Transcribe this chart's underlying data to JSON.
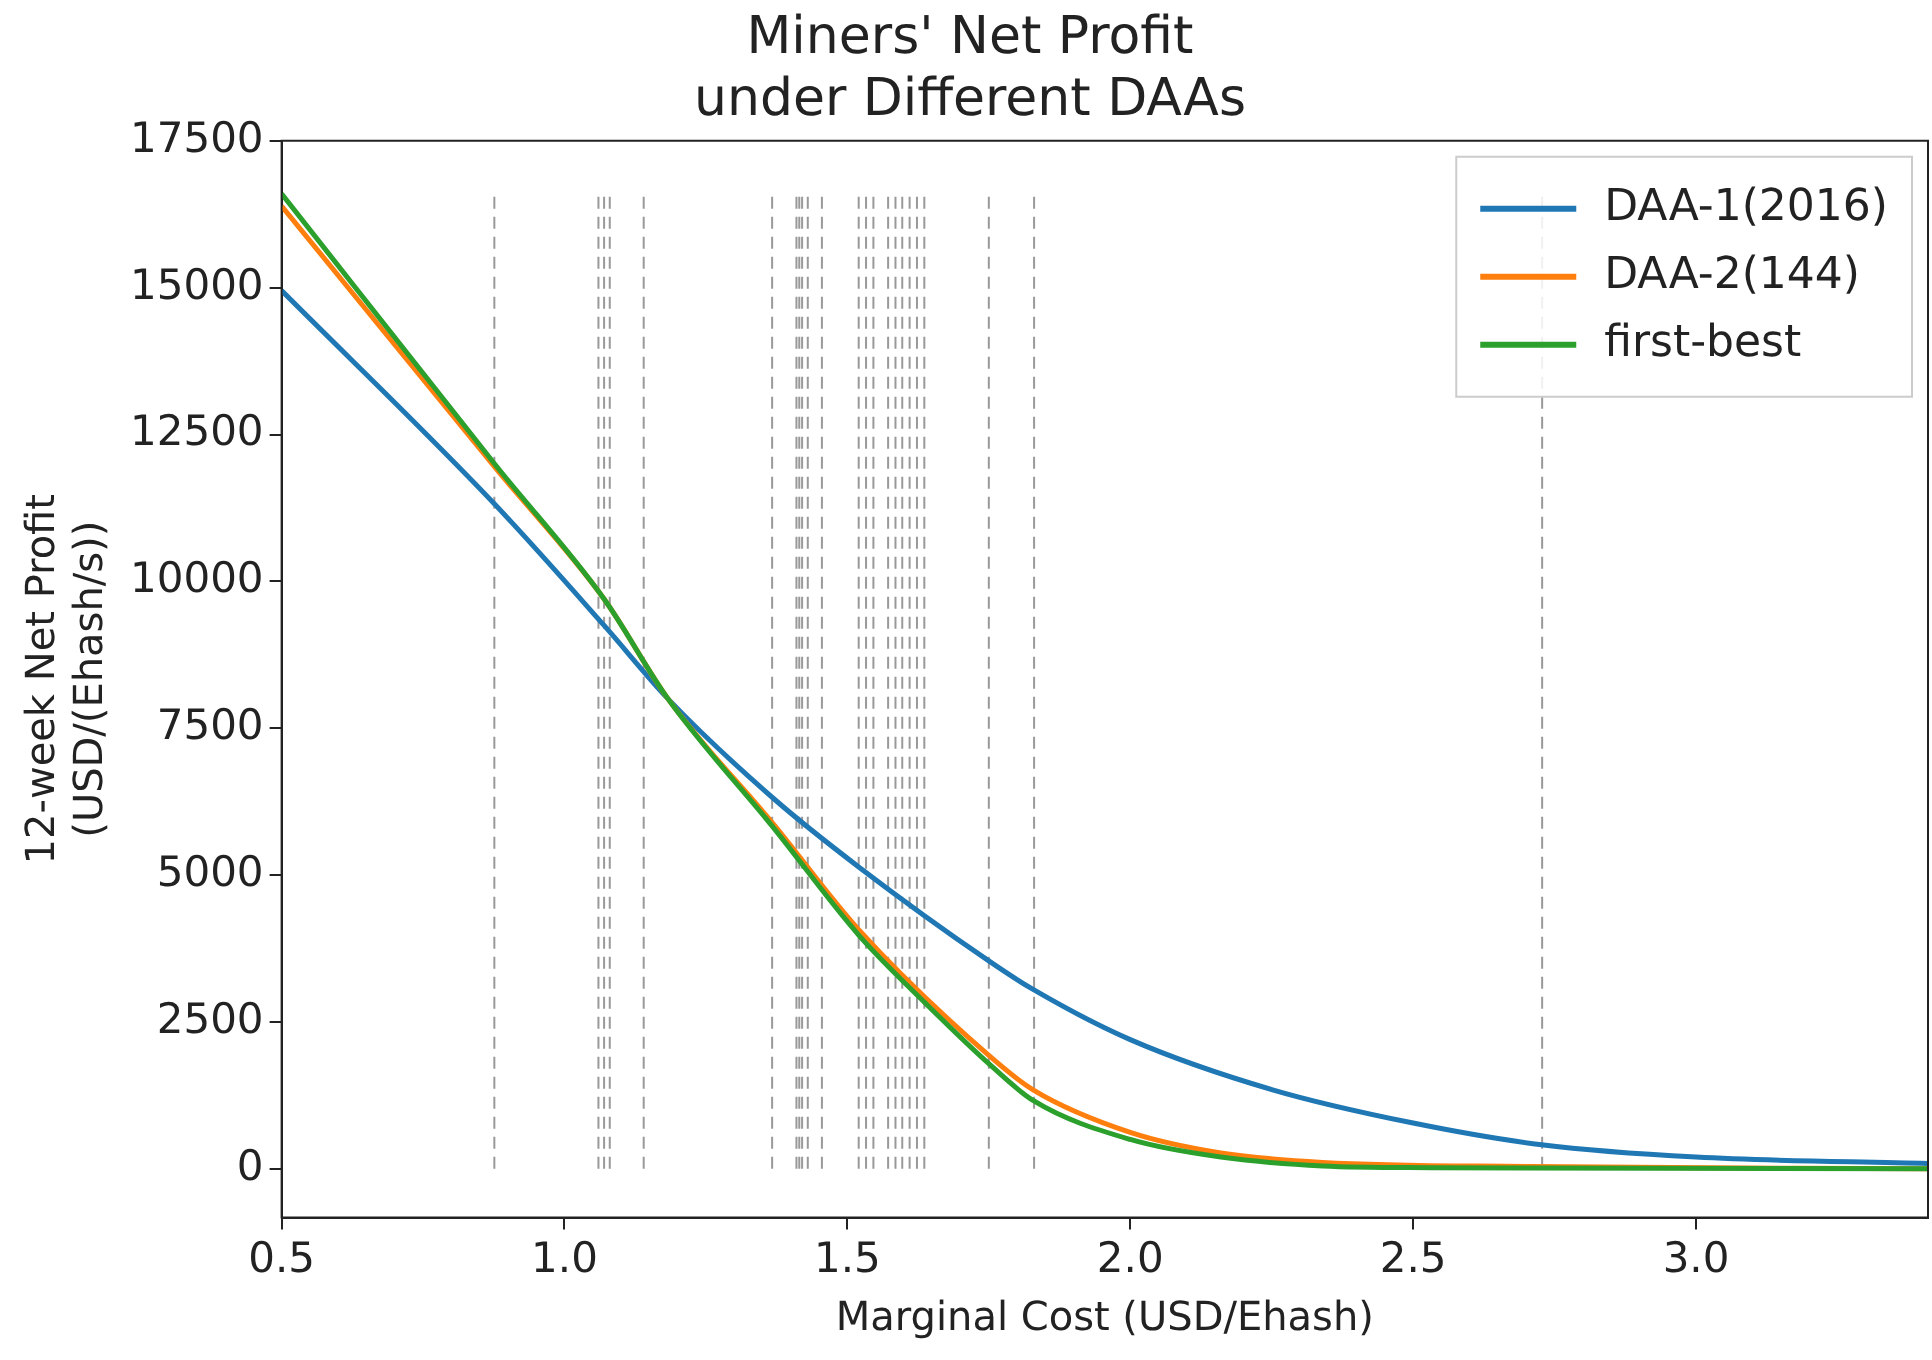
{
  "chart_data": {
    "type": "line",
    "title": "Miners' Net Profit\nunder Different DAAs",
    "xlabel": "Marginal Cost (USD/Ehash)",
    "ylabel": "12-week Net Profit\n(USD/(Ehash/s))",
    "xlim": [
      0.5,
      3.41
    ],
    "xticks": [
      {
        "value": 0.5,
        "label": "0.5"
      },
      {
        "value": 1.0,
        "label": "1.0"
      },
      {
        "value": 1.5,
        "label": "1.5"
      },
      {
        "value": 2.0,
        "label": "2.0"
      },
      {
        "value": 2.5,
        "label": "2.5"
      },
      {
        "value": 3.0,
        "label": "3.0"
      }
    ],
    "ylim": [
      -830,
      17500
    ],
    "yticks": [
      0,
      2500,
      5000,
      7500,
      10000,
      12500,
      15000,
      17500
    ],
    "grid": false,
    "legend": "top right",
    "marker": "none",
    "line_style": "solid",
    "series": [
      {
        "name": "DAA-1(2016)",
        "color": "#1f77b4",
        "x": [
          0.5,
          0.878,
          1.07,
          1.183,
          1.37,
          1.52,
          1.75,
          1.829,
          2.0,
          2.25,
          2.5,
          2.727,
          3.0,
          3.41
        ],
        "values": [
          14950,
          11300,
          9250,
          8000,
          6300,
          5140,
          3540,
          3050,
          2200,
          1350,
          780,
          410,
          200,
          90
        ]
      },
      {
        "name": "DAA-2(144)",
        "color": "#ff7f0e",
        "x": [
          0.5,
          0.878,
          1.07,
          1.183,
          1.37,
          1.52,
          1.75,
          1.829,
          2.0,
          2.16,
          2.34,
          2.71,
          3.41
        ],
        "values": [
          16390,
          11930,
          9700,
          8000,
          5860,
          4070,
          1930,
          1340,
          620,
          270,
          110,
          40,
          0
        ]
      },
      {
        "name": "first-best",
        "color": "#2ca02c",
        "x": [
          0.5,
          0.878,
          1.07,
          1.183,
          1.37,
          1.52,
          1.638,
          1.75,
          1.829,
          2.0,
          2.16,
          2.34,
          2.53,
          3.41
        ],
        "values": [
          16600,
          11980,
          9700,
          8000,
          5800,
          3980,
          2820,
          1790,
          1160,
          500,
          200,
          50,
          20,
          0
        ]
      }
    ],
    "ref_lines": [
      {
        "axis": "x",
        "value": 0.876,
        "color": "#999999",
        "line_style": "dashed"
      },
      {
        "axis": "x",
        "value": 1.06,
        "color": "#999999",
        "line_style": "dashed"
      },
      {
        "axis": "x",
        "value": 1.07,
        "color": "#999999",
        "line_style": "dashed"
      },
      {
        "axis": "x",
        "value": 1.08,
        "color": "#999999",
        "line_style": "dashed"
      },
      {
        "axis": "x",
        "value": 1.14,
        "color": "#999999",
        "line_style": "dashed"
      },
      {
        "axis": "x",
        "value": 1.367,
        "color": "#999999",
        "line_style": "dashed"
      },
      {
        "axis": "x",
        "value": 1.41,
        "color": "#999999",
        "line_style": "dashed"
      },
      {
        "axis": "x",
        "value": 1.415,
        "color": "#999999",
        "line_style": "dashed"
      },
      {
        "axis": "x",
        "value": 1.42,
        "color": "#999999",
        "line_style": "dashed"
      },
      {
        "axis": "x",
        "value": 1.43,
        "color": "#999999",
        "line_style": "dashed"
      },
      {
        "axis": "x",
        "value": 1.455,
        "color": "#999999",
        "line_style": "dashed"
      },
      {
        "axis": "x",
        "value": 1.52,
        "color": "#999999",
        "line_style": "dashed"
      },
      {
        "axis": "x",
        "value": 1.533,
        "color": "#999999",
        "line_style": "dashed"
      },
      {
        "axis": "x",
        "value": 1.546,
        "color": "#999999",
        "line_style": "dashed"
      },
      {
        "axis": "x",
        "value": 1.572,
        "color": "#999999",
        "line_style": "dashed"
      },
      {
        "axis": "x",
        "value": 1.585,
        "color": "#999999",
        "line_style": "dashed"
      },
      {
        "axis": "x",
        "value": 1.597,
        "color": "#999999",
        "line_style": "dashed"
      },
      {
        "axis": "x",
        "value": 1.61,
        "color": "#999999",
        "line_style": "dashed"
      },
      {
        "axis": "x",
        "value": 1.623,
        "color": "#999999",
        "line_style": "dashed"
      },
      {
        "axis": "x",
        "value": 1.636,
        "color": "#999999",
        "line_style": "dashed"
      },
      {
        "axis": "x",
        "value": 1.75,
        "color": "#999999",
        "line_style": "dashed"
      },
      {
        "axis": "x",
        "value": 1.83,
        "color": "#999999",
        "line_style": "dashed"
      },
      {
        "axis": "x",
        "value": 2.728,
        "color": "#999999",
        "line_style": "dashed"
      }
    ]
  }
}
